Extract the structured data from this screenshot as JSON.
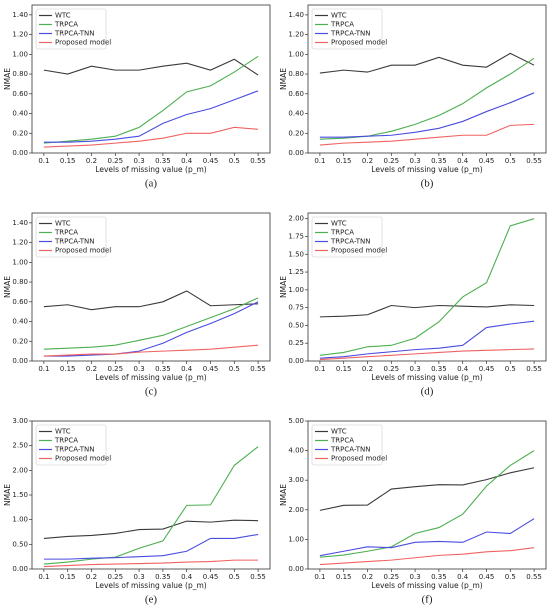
{
  "chart_data": [
    {
      "type": "line",
      "caption": "(a)",
      "xlabel": "Levels of missing value (p_m)",
      "ylabel": "NMAE",
      "legend": "upper-left",
      "x": [
        0.1,
        0.15,
        0.2,
        0.25,
        0.3,
        0.35,
        0.4,
        0.45,
        0.5,
        0.55
      ],
      "xlim": [
        0.075,
        0.575
      ],
      "xticks": [
        0.1,
        0.15,
        0.2,
        0.25,
        0.3,
        0.35,
        0.4,
        0.45,
        0.5,
        0.55
      ],
      "ylim": [
        0,
        1.5
      ],
      "yticks": [
        {
          "value": 0,
          "label": "0.00"
        },
        {
          "value": 0.2,
          "label": "0.20"
        },
        {
          "value": 0.4,
          "label": "0.40"
        },
        {
          "value": 0.6,
          "label": "0.60"
        },
        {
          "value": 0.8,
          "label": "0.80"
        },
        {
          "value": 1.0,
          "label": "1.00"
        },
        {
          "value": 1.2,
          "label": "1.20"
        },
        {
          "value": 1.4,
          "label": "1.40"
        }
      ],
      "series": [
        {
          "name": "WTC",
          "color": "#3a3a3a",
          "values": [
            0.84,
            0.8,
            0.88,
            0.84,
            0.84,
            0.88,
            0.91,
            0.84,
            0.95,
            0.79
          ]
        },
        {
          "name": "TRPCA",
          "color": "#4caf50",
          "values": [
            0.1,
            0.12,
            0.14,
            0.17,
            0.26,
            0.43,
            0.62,
            0.68,
            0.82,
            0.98
          ]
        },
        {
          "name": "TRPCA-TNN",
          "color": "#4b4be0",
          "values": [
            0.11,
            0.11,
            0.12,
            0.14,
            0.17,
            0.3,
            0.39,
            0.45,
            0.54,
            0.63
          ]
        },
        {
          "name": "Proposed model",
          "color": "#f06262",
          "values": [
            0.06,
            0.07,
            0.08,
            0.1,
            0.12,
            0.15,
            0.2,
            0.2,
            0.26,
            0.24
          ]
        }
      ]
    },
    {
      "type": "line",
      "caption": "(b)",
      "xlabel": "Levels of missing value (p_m)",
      "ylabel": "NMAE",
      "legend": "upper-left",
      "x": [
        0.1,
        0.15,
        0.2,
        0.25,
        0.3,
        0.35,
        0.4,
        0.45,
        0.5,
        0.55
      ],
      "xlim": [
        0.075,
        0.575
      ],
      "xticks": [
        0.1,
        0.15,
        0.2,
        0.25,
        0.3,
        0.35,
        0.4,
        0.45,
        0.5,
        0.55
      ],
      "ylim": [
        0,
        1.5
      ],
      "yticks": [
        {
          "value": 0,
          "label": "0.00"
        },
        {
          "value": 0.2,
          "label": "0.20"
        },
        {
          "value": 0.4,
          "label": "0.40"
        },
        {
          "value": 0.6,
          "label": "0.60"
        },
        {
          "value": 0.8,
          "label": "0.80"
        },
        {
          "value": 1.0,
          "label": "1.00"
        },
        {
          "value": 1.2,
          "label": "1.20"
        },
        {
          "value": 1.4,
          "label": "1.40"
        }
      ],
      "series": [
        {
          "name": "WTC",
          "color": "#3a3a3a",
          "values": [
            0.81,
            0.84,
            0.82,
            0.89,
            0.89,
            0.97,
            0.89,
            0.87,
            1.01,
            0.89
          ]
        },
        {
          "name": "TRPCA",
          "color": "#4caf50",
          "values": [
            0.14,
            0.15,
            0.17,
            0.22,
            0.29,
            0.38,
            0.5,
            0.66,
            0.8,
            0.96
          ]
        },
        {
          "name": "TRPCA-TNN",
          "color": "#4b4be0",
          "values": [
            0.16,
            0.16,
            0.17,
            0.18,
            0.21,
            0.25,
            0.32,
            0.42,
            0.51,
            0.61
          ]
        },
        {
          "name": "Proposed model",
          "color": "#f06262",
          "values": [
            0.08,
            0.1,
            0.11,
            0.12,
            0.14,
            0.16,
            0.18,
            0.18,
            0.28,
            0.29
          ]
        }
      ]
    },
    {
      "type": "line",
      "caption": "(c)",
      "xlabel": "Levels of missing value (p_m)",
      "ylabel": "NMAE",
      "legend": "upper-left",
      "x": [
        0.1,
        0.15,
        0.2,
        0.25,
        0.3,
        0.35,
        0.4,
        0.45,
        0.5,
        0.55
      ],
      "xlim": [
        0.075,
        0.575
      ],
      "xticks": [
        0.1,
        0.15,
        0.2,
        0.25,
        0.3,
        0.35,
        0.4,
        0.45,
        0.5,
        0.55
      ],
      "ylim": [
        0,
        1.5
      ],
      "yticks": [
        {
          "value": 0,
          "label": "0.00"
        },
        {
          "value": 0.2,
          "label": "0.20"
        },
        {
          "value": 0.4,
          "label": "0.40"
        },
        {
          "value": 0.6,
          "label": "0.60"
        },
        {
          "value": 0.8,
          "label": "0.80"
        },
        {
          "value": 1.0,
          "label": "1.00"
        },
        {
          "value": 1.2,
          "label": "1.20"
        },
        {
          "value": 1.4,
          "label": "1.40"
        }
      ],
      "series": [
        {
          "name": "WTC",
          "color": "#3a3a3a",
          "values": [
            0.55,
            0.57,
            0.52,
            0.55,
            0.55,
            0.6,
            0.71,
            0.56,
            0.57,
            0.58
          ]
        },
        {
          "name": "TRPCA",
          "color": "#4caf50",
          "values": [
            0.12,
            0.13,
            0.14,
            0.16,
            0.21,
            0.26,
            0.35,
            0.44,
            0.53,
            0.64
          ]
        },
        {
          "name": "TRPCA-TNN",
          "color": "#4b4be0",
          "values": [
            0.05,
            0.05,
            0.06,
            0.07,
            0.1,
            0.18,
            0.29,
            0.38,
            0.48,
            0.6
          ]
        },
        {
          "name": "Proposed model",
          "color": "#f06262",
          "values": [
            0.05,
            0.06,
            0.07,
            0.07,
            0.09,
            0.1,
            0.11,
            0.12,
            0.14,
            0.16
          ]
        }
      ]
    },
    {
      "type": "line",
      "caption": "(d)",
      "xlabel": "Levels of missing value (p_m)",
      "ylabel": "NMAE",
      "legend": "upper-left",
      "x": [
        0.1,
        0.15,
        0.2,
        0.25,
        0.3,
        0.35,
        0.4,
        0.45,
        0.5,
        0.55
      ],
      "xlim": [
        0.075,
        0.575
      ],
      "xticks": [
        0.1,
        0.15,
        0.2,
        0.25,
        0.3,
        0.35,
        0.4,
        0.45,
        0.5,
        0.55
      ],
      "ylim": [
        0,
        2.08
      ],
      "yticks": [
        {
          "value": 0,
          "label": "0.00"
        },
        {
          "value": 0.25,
          "label": "0.25"
        },
        {
          "value": 0.5,
          "label": "0.50"
        },
        {
          "value": 0.75,
          "label": "0.75"
        },
        {
          "value": 1.0,
          "label": "1.00"
        },
        {
          "value": 1.25,
          "label": "1.25"
        },
        {
          "value": 1.5,
          "label": "1.50"
        },
        {
          "value": 1.75,
          "label": "1.75"
        },
        {
          "value": 2.0,
          "label": "2.00"
        }
      ],
      "series": [
        {
          "name": "WTC",
          "color": "#3a3a3a",
          "values": [
            0.62,
            0.63,
            0.65,
            0.78,
            0.75,
            0.78,
            0.77,
            0.76,
            0.79,
            0.78
          ]
        },
        {
          "name": "TRPCA",
          "color": "#4caf50",
          "values": [
            0.08,
            0.12,
            0.2,
            0.22,
            0.32,
            0.55,
            0.9,
            1.1,
            1.9,
            2.0
          ]
        },
        {
          "name": "TRPCA-TNN",
          "color": "#4b4be0",
          "values": [
            0.04,
            0.06,
            0.1,
            0.13,
            0.16,
            0.18,
            0.22,
            0.47,
            0.52,
            0.56
          ]
        },
        {
          "name": "Proposed model",
          "color": "#f06262",
          "values": [
            0.02,
            0.04,
            0.06,
            0.08,
            0.1,
            0.12,
            0.14,
            0.15,
            0.16,
            0.17
          ]
        }
      ]
    },
    {
      "type": "line",
      "caption": "(e)",
      "xlabel": "Levels of missing value (p_m)",
      "ylabel": "NMAE",
      "legend": "upper-left",
      "x": [
        0.1,
        0.15,
        0.2,
        0.25,
        0.3,
        0.35,
        0.4,
        0.45,
        0.5,
        0.55
      ],
      "xlim": [
        0.075,
        0.575
      ],
      "xticks": [
        0.1,
        0.15,
        0.2,
        0.25,
        0.3,
        0.35,
        0.4,
        0.45,
        0.5,
        0.55
      ],
      "ylim": [
        0,
        3.0
      ],
      "yticks": [
        {
          "value": 0,
          "label": "0.00"
        },
        {
          "value": 0.5,
          "label": "0.50"
        },
        {
          "value": 1.0,
          "label": "1.00"
        },
        {
          "value": 1.5,
          "label": "1.50"
        },
        {
          "value": 2.0,
          "label": "2.00"
        },
        {
          "value": 2.5,
          "label": "2.50"
        },
        {
          "value": 3.0,
          "label": "3.00"
        }
      ],
      "series": [
        {
          "name": "WTC",
          "color": "#3a3a3a",
          "values": [
            0.62,
            0.66,
            0.68,
            0.72,
            0.8,
            0.81,
            0.97,
            0.95,
            0.99,
            0.98
          ]
        },
        {
          "name": "TRPCA",
          "color": "#4caf50",
          "values": [
            0.1,
            0.14,
            0.2,
            0.24,
            0.42,
            0.57,
            1.29,
            1.3,
            2.1,
            2.48
          ]
        },
        {
          "name": "TRPCA-TNN",
          "color": "#4b4be0",
          "values": [
            0.2,
            0.2,
            0.22,
            0.23,
            0.25,
            0.27,
            0.36,
            0.62,
            0.62,
            0.7
          ]
        },
        {
          "name": "Proposed model",
          "color": "#f06262",
          "values": [
            0.05,
            0.07,
            0.09,
            0.1,
            0.11,
            0.12,
            0.14,
            0.15,
            0.18,
            0.18
          ]
        }
      ]
    },
    {
      "type": "line",
      "caption": "(f)",
      "xlabel": "Levels of missing value (p_m)",
      "ylabel": "NMAE",
      "legend": "upper-left",
      "x": [
        0.1,
        0.15,
        0.2,
        0.25,
        0.3,
        0.35,
        0.4,
        0.45,
        0.5,
        0.55
      ],
      "xlim": [
        0.075,
        0.575
      ],
      "xticks": [
        0.1,
        0.15,
        0.2,
        0.25,
        0.3,
        0.35,
        0.4,
        0.45,
        0.5,
        0.55
      ],
      "ylim": [
        0,
        5.0
      ],
      "yticks": [
        {
          "value": 0,
          "label": "0.00"
        },
        {
          "value": 1.0,
          "label": "1.00"
        },
        {
          "value": 2.0,
          "label": "2.00"
        },
        {
          "value": 3.0,
          "label": "3.00"
        },
        {
          "value": 4.0,
          "label": "4.00"
        },
        {
          "value": 5.0,
          "label": "5.00"
        }
      ],
      "series": [
        {
          "name": "WTC",
          "color": "#3a3a3a",
          "values": [
            1.98,
            2.15,
            2.16,
            2.7,
            2.78,
            2.85,
            2.84,
            3.02,
            3.25,
            3.42
          ]
        },
        {
          "name": "TRPCA",
          "color": "#4caf50",
          "values": [
            0.4,
            0.47,
            0.6,
            0.75,
            1.2,
            1.4,
            1.85,
            2.8,
            3.5,
            4.0
          ]
        },
        {
          "name": "TRPCA-TNN",
          "color": "#4b4be0",
          "values": [
            0.45,
            0.6,
            0.75,
            0.72,
            0.9,
            0.93,
            0.9,
            1.25,
            1.2,
            1.7
          ]
        },
        {
          "name": "Proposed model",
          "color": "#f06262",
          "values": [
            0.15,
            0.2,
            0.25,
            0.3,
            0.38,
            0.46,
            0.5,
            0.58,
            0.62,
            0.72
          ]
        }
      ]
    }
  ]
}
